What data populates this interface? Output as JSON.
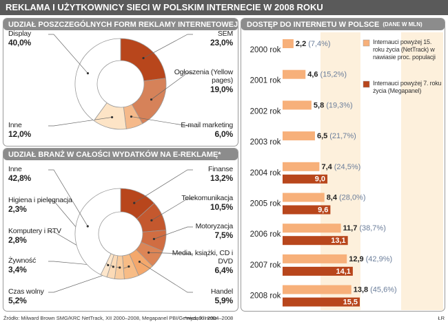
{
  "title": "REKLAMA I UŻYTKOWNICY SIECI W POLSKIM INTERNECIE W 2008 ROKU",
  "footer": {
    "source": "Źródło: Milward Brown SMG/KRC NetTrack, XII 2000–2008, Megapanel PBI/Gemius, XII 2004–2008",
    "note": "*wydatki netto",
    "signature": "ŁR"
  },
  "chart_data": [
    {
      "type": "donut",
      "title": "UDZIAŁ POSZCZEGÓLNYCH FORM REKLAMY INTERNETOWEJ",
      "categories": [
        "SEM",
        "Ogłoszenia (Yellow pages)",
        "E-mail marketing",
        "Inne",
        "Display"
      ],
      "values": [
        23,
        19,
        6,
        12,
        40
      ],
      "value_labels": [
        "23,0%",
        "19,0%",
        "6,0%",
        "12,0%",
        "40,0%"
      ],
      "colors": [
        "#b8461c",
        "#d68259",
        "#f5b98a",
        "#fde4c6",
        "#ffffff"
      ]
    },
    {
      "type": "donut",
      "title": "UDZIAŁ BRANŻ W CAŁOŚCI WYDATKÓW NA E-REKLAMĘ*",
      "categories": [
        "Finanse",
        "Telekomunikacja",
        "Motoryzacja",
        "Media, książki, CD i DVD",
        "Handel",
        "Czas wolny",
        "Żywność",
        "Komputery i RTV",
        "Higiena i pielęgnacja",
        "Inne"
      ],
      "values": [
        13.2,
        10.5,
        7.5,
        6.4,
        5.9,
        5.2,
        3.4,
        2.8,
        2.3,
        42.8
      ],
      "value_labels": [
        "13,2%",
        "10,5%",
        "7,5%",
        "6,4%",
        "5,9%",
        "5,2%",
        "3,4%",
        "2,8%",
        "2,3%",
        "42,8%"
      ],
      "colors": [
        "#b8461c",
        "#c4582e",
        "#d06d42",
        "#dc8556",
        "#f4a86c",
        "#f7bc86",
        "#f9cda0",
        "#fbdab6",
        "#fde6cb",
        "#ffffff"
      ]
    },
    {
      "type": "hbar",
      "title": "DOSTĘP DO INTERNETU W POLSCE",
      "subtitle": "(DANE W MLN)",
      "categories": [
        "2000 rok",
        "2001 rok",
        "2002 rok",
        "2003 rok",
        "2004 rok",
        "2005 rok",
        "2006 rok",
        "2007 rok",
        "2008 rok"
      ],
      "series": [
        {
          "name": "Internauci powyżej 15. roku życia (NetTrack) w nawiasie proc. populacji",
          "color": "#f7b07a",
          "values": [
            2.2,
            4.6,
            5.8,
            6.5,
            7.4,
            8.4,
            11.7,
            12.9,
            13.8
          ],
          "value_labels": [
            "2,2",
            "4,6",
            "5,8",
            "6,5",
            "7,4",
            "8,4",
            "11,7",
            "12,9",
            "13,8"
          ],
          "share_labels": [
            "(7,4%)",
            "(15,2%)",
            "(19,3%)",
            "(21,7%)",
            "(24,5%)",
            "(28,0%)",
            "(38,7%)",
            "(42,9%)",
            "(45,6%)"
          ]
        },
        {
          "name": "Internauci powyżej 7. roku życia (Megapanel)",
          "color": "#b8461c",
          "values": [
            null,
            null,
            null,
            null,
            9.0,
            9.6,
            13.1,
            14.1,
            15.5
          ],
          "value_labels": [
            null,
            null,
            null,
            null,
            "9,0",
            "9,6",
            "13,1",
            "14,1",
            "15,5"
          ]
        }
      ]
    }
  ]
}
